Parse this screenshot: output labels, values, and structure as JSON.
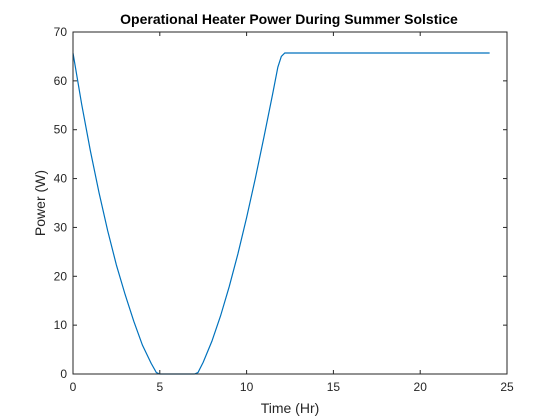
{
  "chart_data": {
    "type": "line",
    "title": "Operational Heater Power During Summer Solstice",
    "xlabel": "Time (Hr)",
    "ylabel": "Power (W)",
    "xlim": [
      0,
      25
    ],
    "ylim": [
      0,
      70
    ],
    "xticks": [
      0,
      5,
      10,
      15,
      20,
      25
    ],
    "yticks": [
      0,
      10,
      20,
      30,
      40,
      50,
      60,
      70
    ],
    "grid": false,
    "line_color": "#0072BD",
    "series": [
      {
        "x": [
          0,
          0.5,
          1,
          1.5,
          2,
          2.5,
          3,
          3.5,
          4,
          4.5,
          4.8,
          5.0,
          5.5,
          6,
          6.5,
          7.0,
          7.2,
          7.5,
          8,
          8.5,
          9,
          9.5,
          10,
          10.5,
          11,
          11.5,
          11.8,
          12.0,
          12.2,
          13,
          14,
          16,
          18,
          20,
          22,
          24
        ],
        "y": [
          65.7,
          55.2,
          45.7,
          37.1,
          29.3,
          22.3,
          16.3,
          10.8,
          5.9,
          2.2,
          0.3,
          0,
          0,
          0,
          0,
          0,
          0.3,
          2.4,
          6.7,
          11.9,
          17.9,
          24.6,
          32.0,
          40.0,
          48.5,
          57.3,
          62.8,
          65.0,
          65.7,
          65.7,
          65.7,
          65.7,
          65.7,
          65.7,
          65.7,
          65.7
        ]
      }
    ]
  }
}
